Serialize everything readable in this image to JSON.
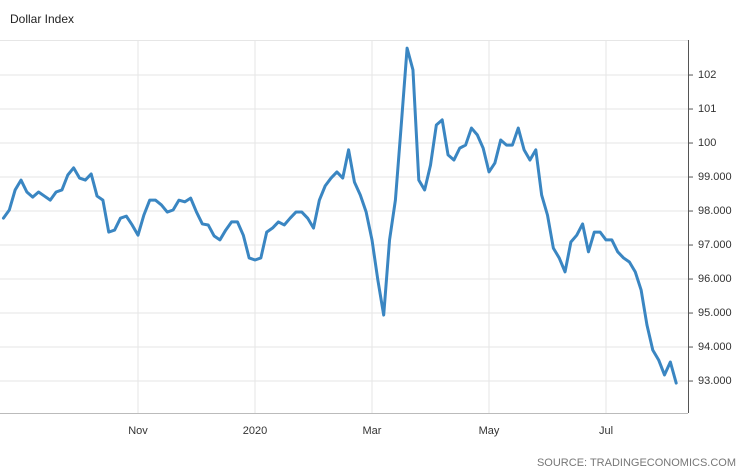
{
  "chart_data": {
    "type": "line",
    "title": "Dollar Index",
    "source": "SOURCE: TRADINGECONOMICS.COM",
    "categories": [
      null,
      null,
      null,
      null,
      null,
      null,
      null,
      null,
      null,
      null,
      null,
      null,
      null,
      null,
      null,
      null,
      null,
      null,
      null,
      null,
      null,
      null,
      null,
      "Nov",
      null,
      null,
      null,
      null,
      null,
      null,
      null,
      null,
      null,
      null,
      null,
      null,
      null,
      null,
      null,
      null,
      null,
      null,
      null,
      "2020",
      null,
      null,
      null,
      null,
      null,
      null,
      null,
      null,
      null,
      null,
      null,
      null,
      null,
      null,
      null,
      null,
      null,
      null,
      null,
      "Mar",
      null,
      null,
      null,
      null,
      null,
      null,
      null,
      null,
      null,
      null,
      null,
      null,
      null,
      null,
      null,
      null,
      null,
      null,
      null,
      "May",
      null,
      null,
      null,
      null,
      null,
      null,
      null,
      null,
      null,
      null,
      null,
      null,
      null,
      null,
      null,
      null,
      null,
      null,
      null,
      "Jul",
      null,
      null,
      null,
      null,
      null,
      null,
      null,
      null,
      null,
      null,
      null,
      null
    ],
    "values": [
      97.79,
      98.03,
      98.62,
      98.91,
      98.56,
      98.41,
      98.56,
      98.44,
      98.32,
      98.56,
      98.62,
      99.06,
      99.27,
      98.97,
      98.91,
      99.09,
      98.44,
      98.32,
      97.38,
      97.44,
      97.79,
      97.85,
      97.59,
      97.29,
      97.88,
      98.32,
      98.32,
      98.18,
      97.97,
      98.03,
      98.32,
      98.27,
      98.38,
      97.97,
      97.62,
      97.59,
      97.27,
      97.15,
      97.44,
      97.68,
      97.68,
      97.29,
      96.62,
      96.56,
      96.62,
      97.38,
      97.5,
      97.68,
      97.59,
      97.79,
      97.97,
      97.97,
      97.79,
      97.5,
      98.32,
      98.74,
      98.97,
      99.15,
      98.97,
      99.8,
      98.85,
      98.47,
      97.97,
      97.15,
      95.97,
      94.94,
      97.15,
      98.32,
      100.53,
      102.79,
      102.15,
      98.91,
      98.62,
      99.35,
      100.53,
      100.68,
      99.65,
      99.5,
      99.85,
      99.94,
      100.44,
      100.24,
      99.85,
      99.15,
      99.41,
      100.09,
      99.94,
      99.94,
      100.44,
      99.8,
      99.5,
      99.8,
      98.47,
      97.88,
      96.91,
      96.62,
      96.21,
      97.09,
      97.29,
      97.62,
      96.8,
      97.38,
      97.38,
      97.15,
      97.15,
      96.8,
      96.62,
      96.5,
      96.21,
      95.68,
      94.65,
      93.91,
      93.62,
      93.18,
      93.56,
      92.94
    ],
    "color": "#3a86c2",
    "ylim": [
      92.06,
      103.03
    ],
    "yticks": [
      {
        "value": 93,
        "label": "93.000"
      },
      {
        "value": 94,
        "label": "94.000"
      },
      {
        "value": 95,
        "label": "95.000"
      },
      {
        "value": 96,
        "label": "96.000"
      },
      {
        "value": 97,
        "label": "97.000"
      },
      {
        "value": 98,
        "label": "98.000"
      },
      {
        "value": 99,
        "label": "99.000"
      },
      100,
      101,
      102
    ],
    "grid": true
  }
}
